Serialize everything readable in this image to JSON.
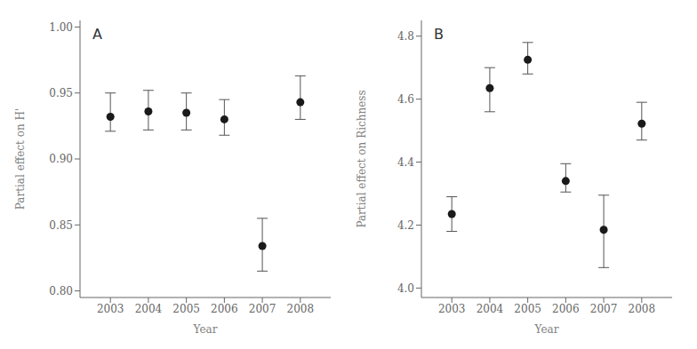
{
  "chart_data": [
    {
      "type": "scatter",
      "annotations": [
        "A"
      ],
      "x_label": "Year",
      "y_label": "Partial effect on H'",
      "x": [
        2003,
        2004,
        2005,
        2006,
        2007,
        2008
      ],
      "series": [
        {
          "color": "#1a1a1a",
          "marker": "circle",
          "values": [
            0.932,
            0.936,
            0.935,
            0.93,
            0.834,
            0.943
          ],
          "error_lower": [
            0.011,
            0.014,
            0.013,
            0.012,
            0.019,
            0.013
          ],
          "error_upper": [
            0.018,
            0.016,
            0.015,
            0.015,
            0.021,
            0.02
          ]
        }
      ],
      "xlim": [
        2002.2,
        2008.8
      ],
      "xticks": [
        2003,
        2004,
        2005,
        2006,
        2007,
        2008
      ],
      "ylim": [
        0.795,
        1.005
      ],
      "yticks": [
        {
          "value": 0.8,
          "label": "0.80"
        },
        0.85,
        {
          "value": 0.9,
          "label": "0.90"
        },
        0.95,
        {
          "value": 1.0,
          "label": "1.00"
        }
      ],
      "grid": false
    },
    {
      "type": "scatter",
      "annotations": [
        "B"
      ],
      "x_label": "Year",
      "y_label": "Partial effect on Richness",
      "x": [
        2003,
        2004,
        2005,
        2006,
        2007,
        2008
      ],
      "series": [
        {
          "color": "#1a1a1a",
          "marker": "circle",
          "values": [
            4.235,
            4.635,
            4.725,
            4.34,
            4.185,
            4.522
          ],
          "error_lower": [
            0.055,
            0.075,
            0.045,
            0.035,
            0.12,
            0.052
          ],
          "error_upper": [
            0.055,
            0.065,
            0.055,
            0.055,
            0.11,
            0.068
          ]
        }
      ],
      "xlim": [
        2002.2,
        2008.8
      ],
      "xticks": [
        2003,
        2004,
        2005,
        2006,
        2007,
        2008
      ],
      "ylim": [
        3.97,
        4.85
      ],
      "yticks": [
        {
          "value": 4.0,
          "label": "4.0"
        },
        4.2,
        4.4,
        4.6,
        4.8
      ],
      "grid": false
    }
  ]
}
